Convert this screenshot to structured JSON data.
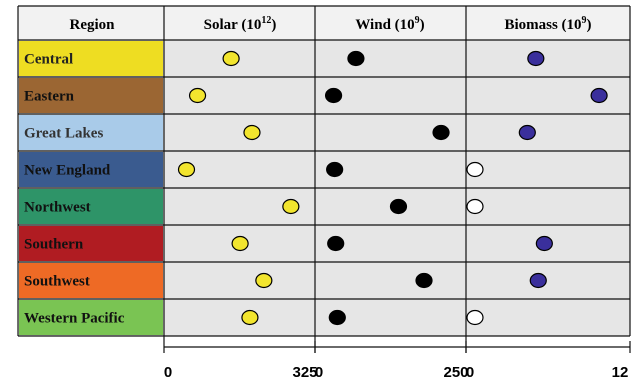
{
  "chart_data": {
    "type": "scatter",
    "header": {
      "region": "Region",
      "solar": "Solar (10",
      "solar_exp": "12",
      "wind": "Wind (10",
      "wind_exp": "9",
      "biomass": "Biomass (10",
      "biomass_exp": "9",
      "close": ")"
    },
    "categories": [
      "Central",
      "Eastern",
      "Great Lakes",
      "New England",
      "Northwest",
      "Southern",
      "Southwest",
      "Western Pacific"
    ],
    "region_colors": [
      "#eedd22",
      "#9b6633",
      "#a9cbe9",
      "#3a5b8f",
      "#2e9468",
      "#b01c22",
      "#ee6a25",
      "#7ac453"
    ],
    "region_text_colors": [
      "#222222",
      "#111111",
      "#333333",
      "#111111",
      "#111111",
      "#111111",
      "#111111",
      "#111111"
    ],
    "panels": [
      {
        "name": "Solar",
        "xlim": [
          0,
          325
        ],
        "tick_labels": [
          "0",
          "325"
        ],
        "marker_color": "#f2e52e",
        "values": [
          142,
          60,
          193,
          33,
          288,
          164,
          222,
          188
        ],
        "filled": [
          true,
          true,
          true,
          true,
          true,
          true,
          true,
          true
        ]
      },
      {
        "name": "Wind",
        "xlim": [
          0,
          250
        ],
        "tick_labels": [
          "0",
          "250"
        ],
        "marker_color": "#000000",
        "values": [
          60,
          18,
          220,
          20,
          140,
          22,
          188,
          25
        ],
        "filled": [
          true,
          true,
          true,
          true,
          true,
          true,
          true,
          true
        ]
      },
      {
        "name": "Biomass",
        "xlim": [
          0,
          12
        ],
        "tick_labels": [
          "0",
          "12"
        ],
        "marker_color": "#3a2f9c",
        "values": [
          5.0,
          10.2,
          4.3,
          0,
          0,
          5.7,
          5.2,
          0
        ],
        "filled": [
          true,
          true,
          true,
          false,
          false,
          true,
          true,
          false
        ]
      }
    ]
  }
}
